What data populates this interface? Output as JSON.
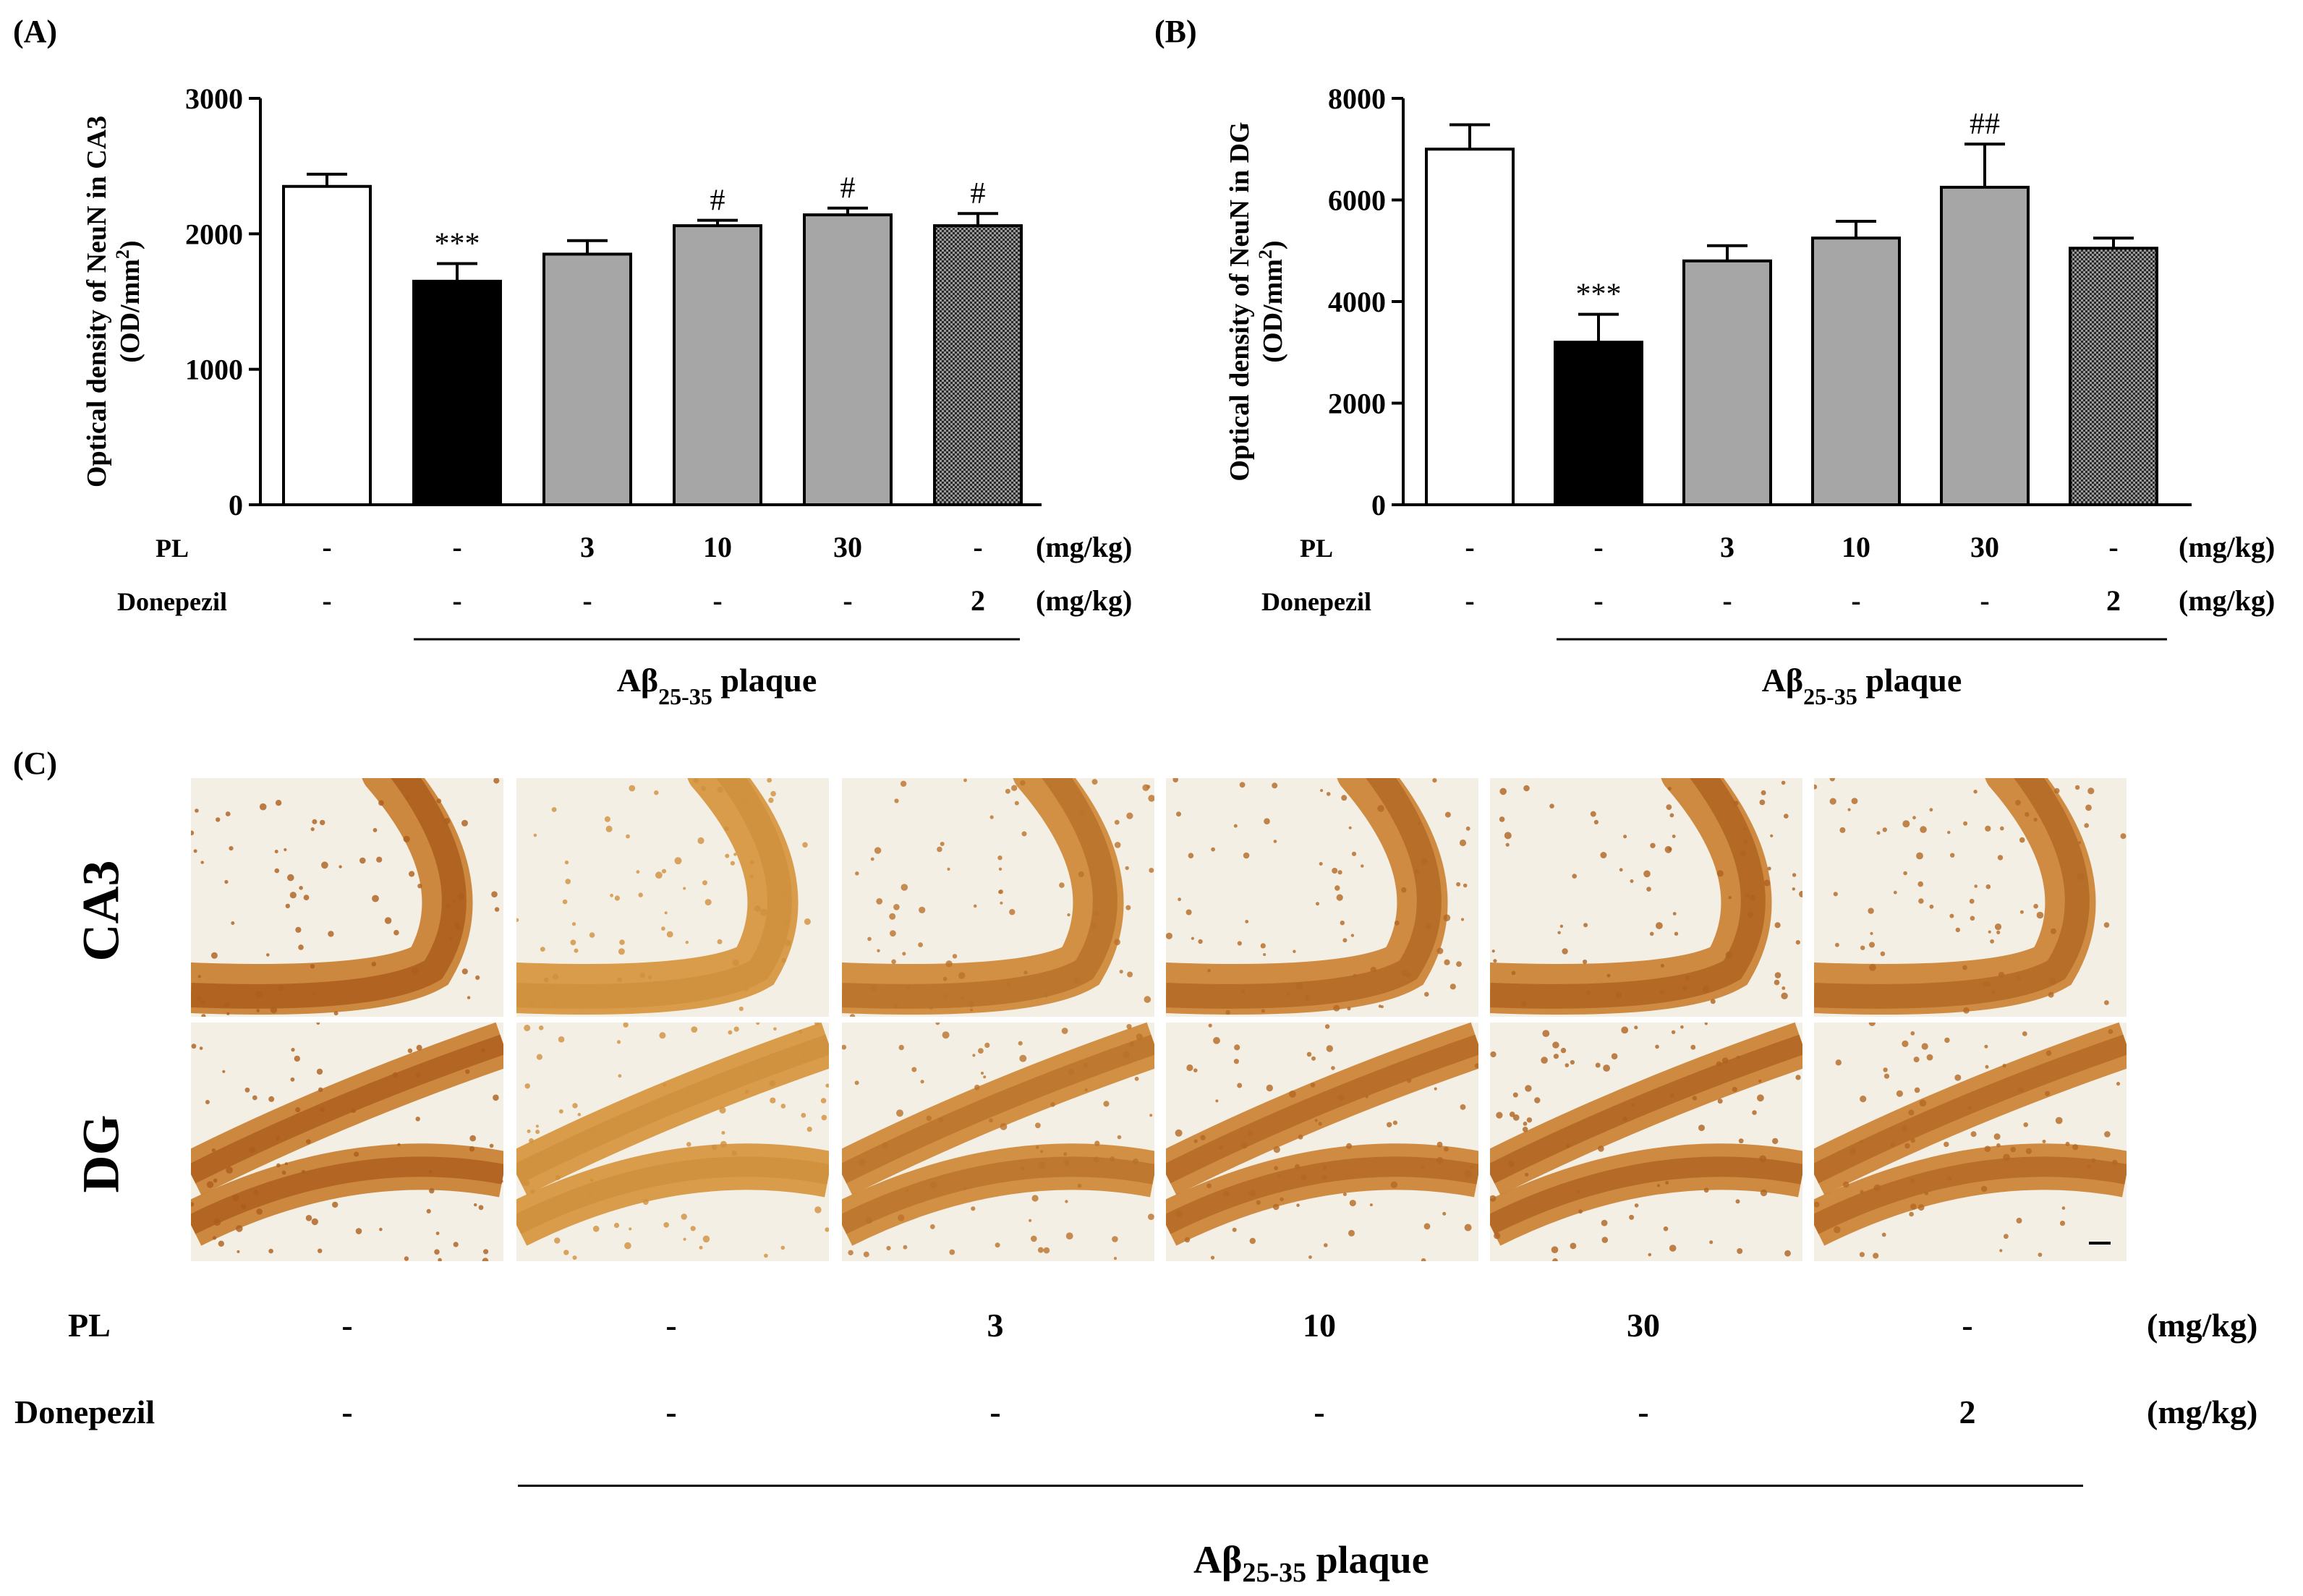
{
  "colors": {
    "stain_dark": "#a8591a",
    "stain_mid": "#c87a2c",
    "stain_light": "#e0a545",
    "stain_pale": "#eebd58",
    "tissue_bg": "#f3efe4",
    "bar_gray": "#a6a6a6",
    "bar_black": "#000000",
    "bar_white": "#ffffff"
  },
  "panels": {
    "a_label": "(A)",
    "b_label": "(B)",
    "c_label": "(C)"
  },
  "chart_data": [
    {
      "type": "bar",
      "panel": "(A)",
      "ylabel_line1": "Optical density of NeuN in CA3",
      "ylabel_line2": "(OD/mm",
      "ylabel_sup": "2",
      "ylabel_close": ")",
      "ylim": [
        0,
        3000
      ],
      "yticks": [
        0,
        1000,
        2000,
        3000
      ],
      "values": [
        2350,
        1650,
        1850,
        2060,
        2140,
        2060
      ],
      "errors": [
        90,
        130,
        100,
        40,
        50,
        90
      ],
      "fills": [
        "white",
        "black",
        "gray",
        "gray",
        "gray",
        "pattern"
      ],
      "annotations": [
        "",
        "***",
        "",
        "#",
        "#",
        "#"
      ],
      "pl_label": "PL",
      "pl_values": [
        "-",
        "-",
        "3",
        "10",
        "30",
        "-"
      ],
      "donepezil_label": "Donepezil",
      "donepezil_values": [
        "-",
        "-",
        "-",
        "-",
        "-",
        "2"
      ],
      "unit": "(mg/kg)",
      "plaque_label": "Aβ",
      "plaque_sub": "25-35",
      "plaque_word": " plaque"
    },
    {
      "type": "bar",
      "panel": "(B)",
      "ylabel_line1": "Optical density of NeuN in DG",
      "ylabel_line2": "(OD/mm",
      "ylabel_sup": "2",
      "ylabel_close": ")",
      "ylim": [
        0,
        8000
      ],
      "yticks": [
        0,
        2000,
        4000,
        6000,
        8000
      ],
      "values": [
        7000,
        3200,
        4800,
        5250,
        6250,
        5050
      ],
      "errors": [
        480,
        550,
        300,
        330,
        850,
        200
      ],
      "fills": [
        "white",
        "black",
        "gray",
        "gray",
        "gray",
        "pattern"
      ],
      "annotations": [
        "",
        "***",
        "",
        "",
        "##",
        ""
      ],
      "pl_label": "PL",
      "pl_values": [
        "-",
        "-",
        "3",
        "10",
        "30",
        "-"
      ],
      "donepezil_label": "Donepezil",
      "donepezil_values": [
        "-",
        "-",
        "-",
        "-",
        "-",
        "2"
      ],
      "unit": "(mg/kg)",
      "plaque_label": "Aβ",
      "plaque_sub": "25-35",
      "plaque_word": " plaque"
    }
  ],
  "micrographs": {
    "row_labels": [
      "CA3",
      "DG"
    ],
    "intensity": [
      0.95,
      0.45,
      0.75,
      0.85,
      0.9,
      0.85
    ],
    "pl_label": "PL",
    "pl_values": [
      "-",
      "-",
      "3",
      "10",
      "30",
      "-"
    ],
    "donepezil_label": "Donepezil",
    "donepezil_values": [
      "-",
      "-",
      "-",
      "-",
      "-",
      "2"
    ],
    "unit": "(mg/kg)",
    "plaque_label": "Aβ",
    "plaque_sub": "25-35",
    "plaque_word": " plaque"
  }
}
